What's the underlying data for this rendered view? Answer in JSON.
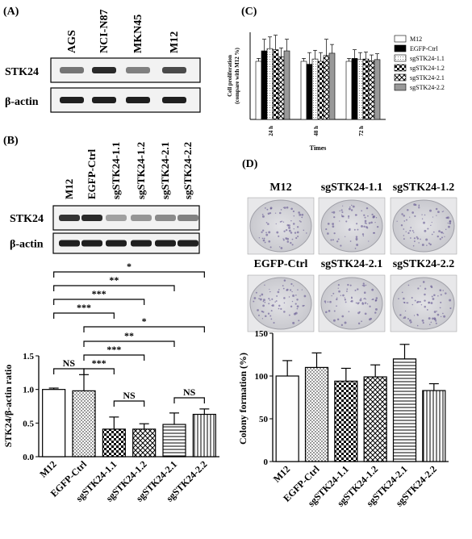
{
  "panels": {
    "A": "(A)",
    "B": "(B)",
    "C": "(C)",
    "D": "(D)"
  },
  "blotA": {
    "lanes": [
      "AGS",
      "NCI-N87",
      "MKN45",
      "M12"
    ],
    "rows": [
      "STK24",
      "β-actin"
    ],
    "band_intensity": {
      "STK24": [
        0.55,
        0.9,
        0.5,
        0.75
      ],
      "β-actin": [
        0.95,
        0.95,
        0.95,
        0.95
      ]
    }
  },
  "blotB": {
    "lanes": [
      "M12",
      "EGFP-Ctrl",
      "sgSTK24-1.1",
      "sgSTK24-1.2",
      "sgSTK24-2.1",
      "sgSTK24-2.2"
    ],
    "rows": [
      "STK24",
      "β-actin"
    ],
    "band_intensity": {
      "STK24": [
        0.85,
        0.9,
        0.35,
        0.4,
        0.45,
        0.5
      ],
      "β-actin": [
        0.95,
        0.95,
        0.95,
        0.95,
        0.95,
        0.95
      ]
    }
  },
  "significance_B": [
    {
      "label": "*"
    },
    {
      "label": "**"
    },
    {
      "label": "***"
    },
    {
      "label": "***"
    },
    {
      "label": "*"
    },
    {
      "label": "**"
    },
    {
      "label": "***"
    },
    {
      "label": "***"
    },
    {
      "label": "NS"
    },
    {
      "label": "NS"
    },
    {
      "label": "NS"
    }
  ],
  "plates": {
    "row1": [
      "M12",
      "sgSTK24-1.1",
      "sgSTK24-1.2"
    ],
    "row2": [
      "EGFP-Ctrl",
      "sgSTK24-2.1",
      "sgSTK24-2.2"
    ]
  },
  "colors": {
    "black": "#000000",
    "plate_bg": "#d8d8dc",
    "colony": "#5a4a8a"
  },
  "chart_data": [
    {
      "id": "B",
      "type": "bar",
      "ylabel": "STK24/β-actin ratio",
      "ylim": [
        0,
        1.5
      ],
      "yticks": [
        "0.0",
        "0.5",
        "1.0",
        "1.5"
      ],
      "categories": [
        "M12",
        "EGFP-Ctrl",
        "sgSTK24-1.1",
        "sgSTK24-1.2",
        "sgSTK24-2.1",
        "sgSTK24-2.2"
      ],
      "values": [
        1.0,
        0.98,
        0.41,
        0.41,
        0.48,
        0.63
      ],
      "errors": [
        0.02,
        0.24,
        0.18,
        0.08,
        0.17,
        0.08
      ]
    },
    {
      "id": "C",
      "type": "bar",
      "ylabel": "Cell proliferation (compare with M12 %)",
      "xlabel": "Times",
      "categories": [
        "24 h",
        "48 h",
        "72 h"
      ],
      "series": [
        {
          "name": "M12",
          "values": [
            100,
            100,
            100
          ]
        },
        {
          "name": "EGFP-Ctrl",
          "values": [
            118,
            95,
            105
          ]
        },
        {
          "name": "sgSTK24-1.1",
          "values": [
            122,
            104,
            103
          ]
        },
        {
          "name": "sgSTK24-1.2",
          "values": [
            120,
            100,
            104
          ]
        },
        {
          "name": "sgSTK24-2.1",
          "values": [
            108,
            110,
            101
          ]
        },
        {
          "name": "sgSTK24-2.2",
          "values": [
            118,
            114,
            103
          ]
        }
      ],
      "errors": [
        [
          5,
          5,
          5
        ],
        [
          20,
          20,
          15
        ],
        [
          20,
          15,
          12
        ],
        [
          25,
          15,
          12
        ],
        [
          15,
          28,
          10
        ],
        [
          20,
          15,
          10
        ]
      ],
      "ylim": [
        0,
        150
      ]
    },
    {
      "id": "D",
      "type": "bar",
      "ylabel": "Colony formation (%)",
      "ylim": [
        0,
        150
      ],
      "yticks": [
        "0",
        "50",
        "100",
        "150"
      ],
      "categories": [
        "M12",
        "EGFP-Ctrl",
        "sgSTK24-1.1",
        "sgSTK24-1.2",
        "sgSTK24-2.1",
        "sgSTK24-2.2"
      ],
      "values": [
        100,
        110,
        94,
        99,
        120,
        83
      ],
      "errors": [
        18,
        17,
        15,
        14,
        17,
        8
      ]
    }
  ]
}
